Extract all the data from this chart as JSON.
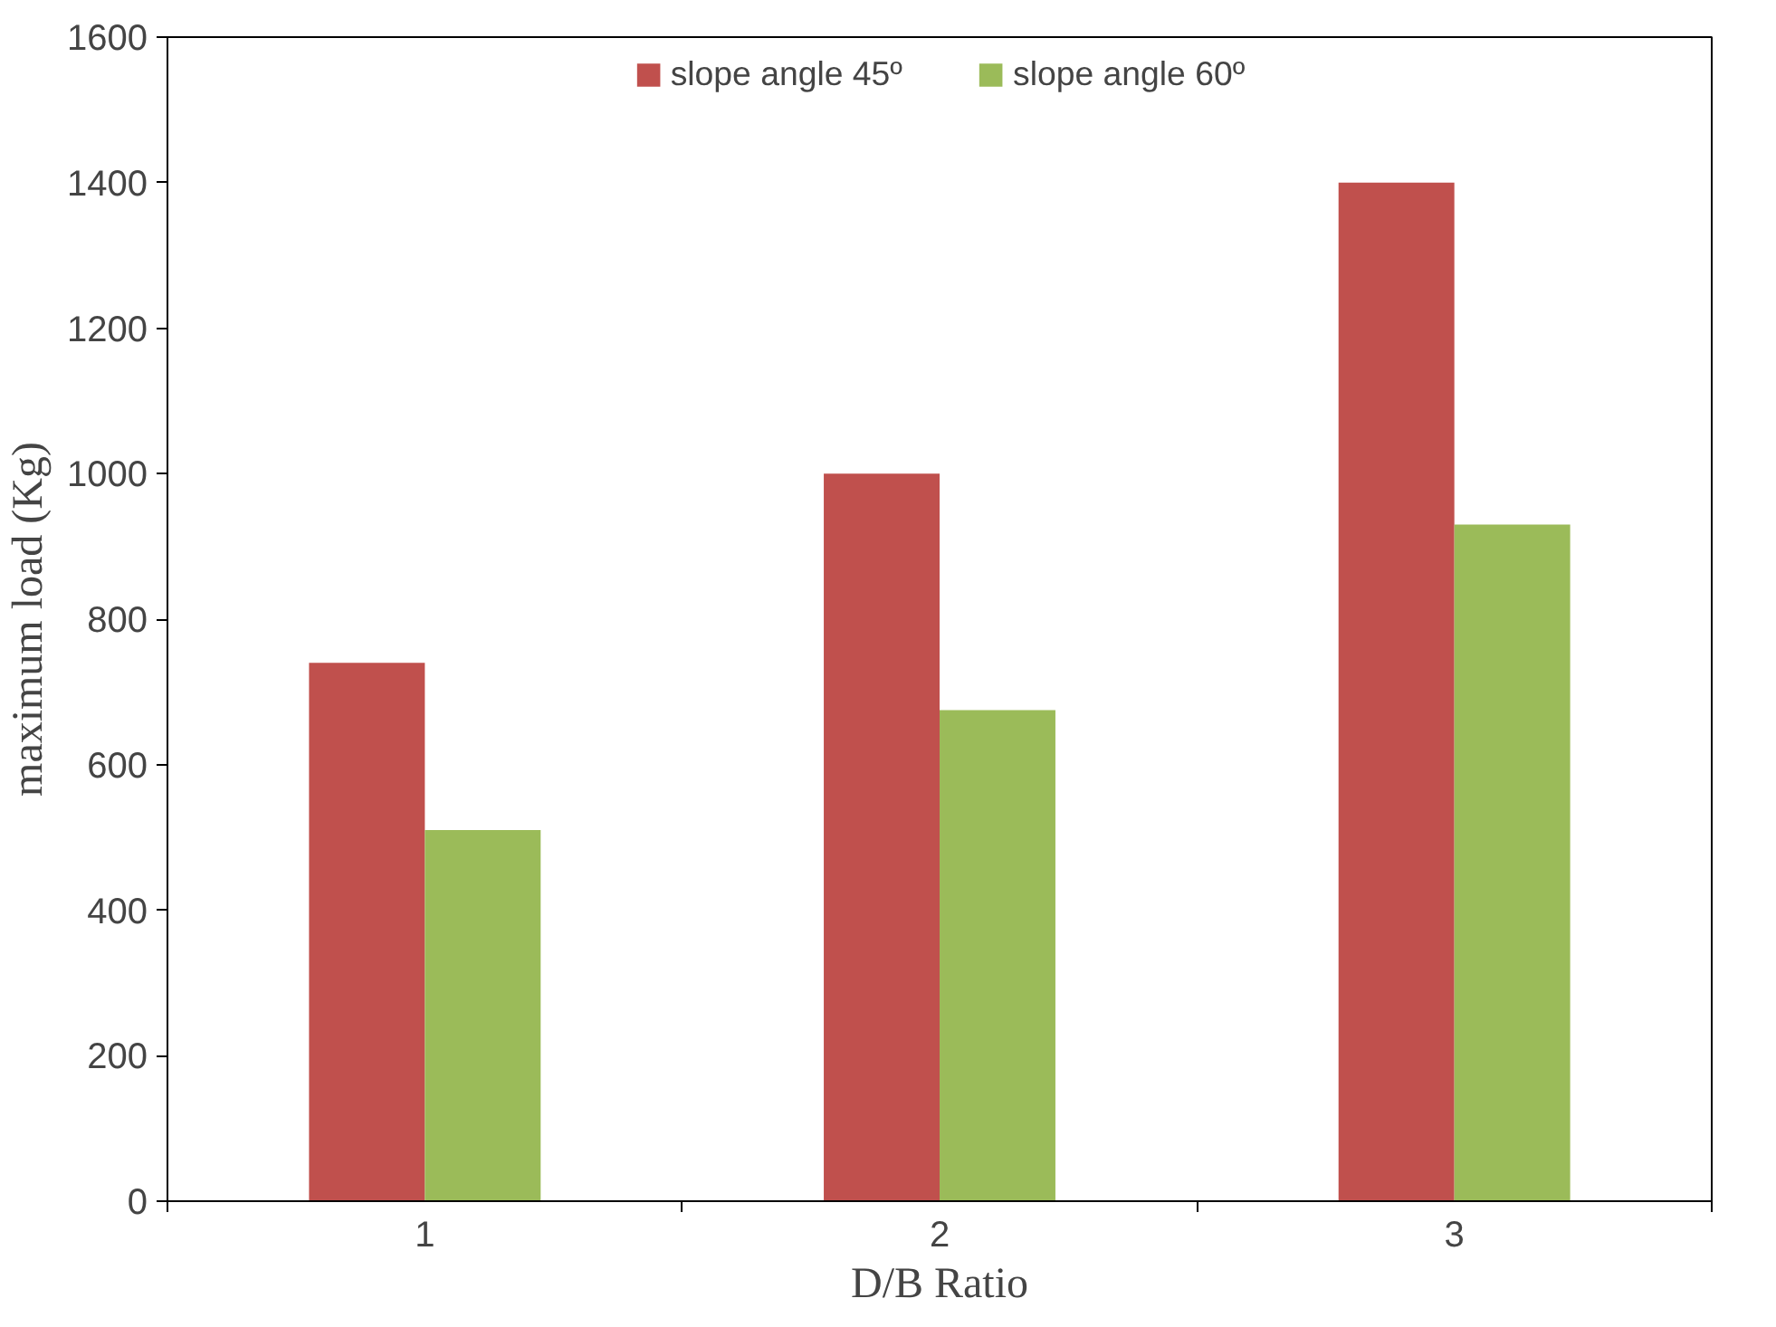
{
  "chart_data": {
    "type": "bar",
    "xlabel": "D/B Ratio",
    "ylabel": "maximum load (Kg)",
    "categories": [
      "1",
      "2",
      "3"
    ],
    "series": [
      {
        "name": "slope angle 45º",
        "color": "#c0504d",
        "values": [
          740,
          1000,
          1400
        ]
      },
      {
        "name": "slope angle 60º",
        "color": "#9bbb59",
        "values": [
          510,
          675,
          930
        ]
      }
    ],
    "ylim": [
      0,
      1600
    ],
    "yticks": [
      0,
      200,
      400,
      600,
      800,
      1000,
      1200,
      1400,
      1600
    ],
    "grid": false,
    "legend": "top"
  }
}
